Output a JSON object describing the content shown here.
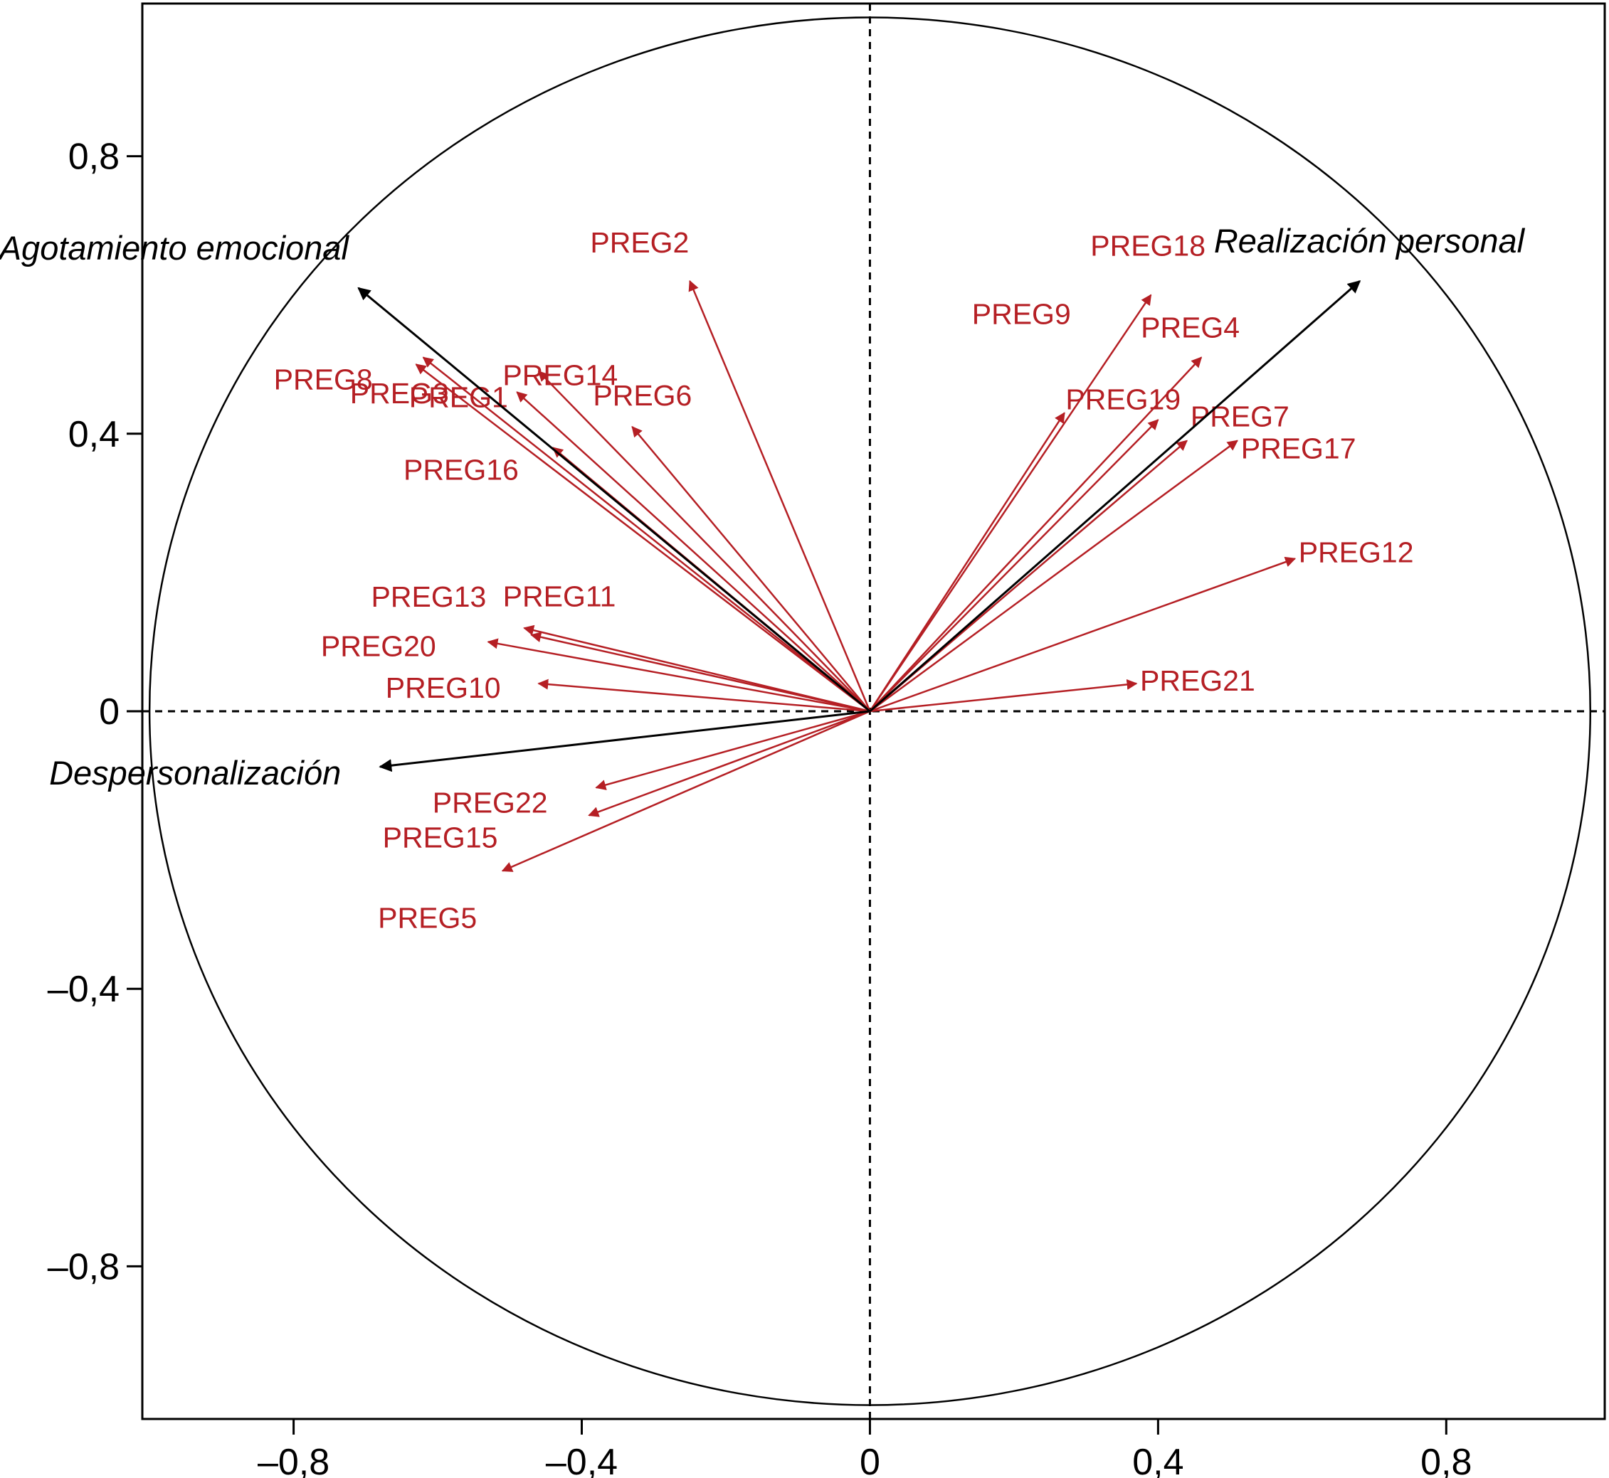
{
  "chart_data": {
    "type": "vector-plot",
    "title": "",
    "xlabel": "",
    "ylabel": "",
    "xlim": [
      -1.01,
      1.02
    ],
    "ylim": [
      -1.02,
      1.02
    ],
    "xticks": [
      -0.8,
      -0.4,
      0,
      0.4,
      0.8
    ],
    "yticks": [
      0.8,
      0.4,
      0,
      -0.4,
      -0.8
    ],
    "xtick_labels": [
      "–0,8",
      "–0,4",
      "0",
      "0,4",
      "0,8"
    ],
    "ytick_labels": [
      "0,8",
      "0,4",
      "0",
      "–0,4",
      "–0,8"
    ],
    "unit_circle": true,
    "reference_lines": "dashed at x=0 and y=0",
    "colors": {
      "variables": "#b51f24",
      "factors": "#000000"
    },
    "variables": [
      {
        "label": "PREG1",
        "x": -0.62,
        "y": 0.51
      },
      {
        "label": "PREG2",
        "x": -0.25,
        "y": 0.62
      },
      {
        "label": "PREG3",
        "x": -0.46,
        "y": 0.49
      },
      {
        "label": "PREG4",
        "x": 0.46,
        "y": 0.51
      },
      {
        "label": "PREG5",
        "x": -0.51,
        "y": -0.23
      },
      {
        "label": "PREG6",
        "x": -0.33,
        "y": 0.41
      },
      {
        "label": "PREG7",
        "x": 0.44,
        "y": 0.39
      },
      {
        "label": "PREG8",
        "x": -0.63,
        "y": 0.5
      },
      {
        "label": "PREG9",
        "x": 0.27,
        "y": 0.43
      },
      {
        "label": "PREG10",
        "x": -0.46,
        "y": 0.04
      },
      {
        "label": "PREG11",
        "x": -0.47,
        "y": 0.11
      },
      {
        "label": "PREG12",
        "x": 0.59,
        "y": 0.22
      },
      {
        "label": "PREG13",
        "x": -0.48,
        "y": 0.12
      },
      {
        "label": "PREG14",
        "x": -0.49,
        "y": 0.46
      },
      {
        "label": "PREG15",
        "x": -0.39,
        "y": -0.15
      },
      {
        "label": "PREG16",
        "x": -0.44,
        "y": 0.38
      },
      {
        "label": "PREG17",
        "x": 0.51,
        "y": 0.39
      },
      {
        "label": "PREG18",
        "x": 0.39,
        "y": 0.6
      },
      {
        "label": "PREG19",
        "x": 0.4,
        "y": 0.42
      },
      {
        "label": "PREG20",
        "x": -0.53,
        "y": 0.1
      },
      {
        "label": "PREG21",
        "x": 0.37,
        "y": 0.04
      },
      {
        "label": "PREG22",
        "x": -0.38,
        "y": -0.11
      }
    ],
    "factors": [
      {
        "label": "Agotamiento emocional",
        "x": -0.71,
        "y": 0.61
      },
      {
        "label": "Realización personal",
        "x": 0.68,
        "y": 0.62
      },
      {
        "label": "Despersonalización",
        "x": -0.68,
        "y": -0.08
      }
    ]
  }
}
